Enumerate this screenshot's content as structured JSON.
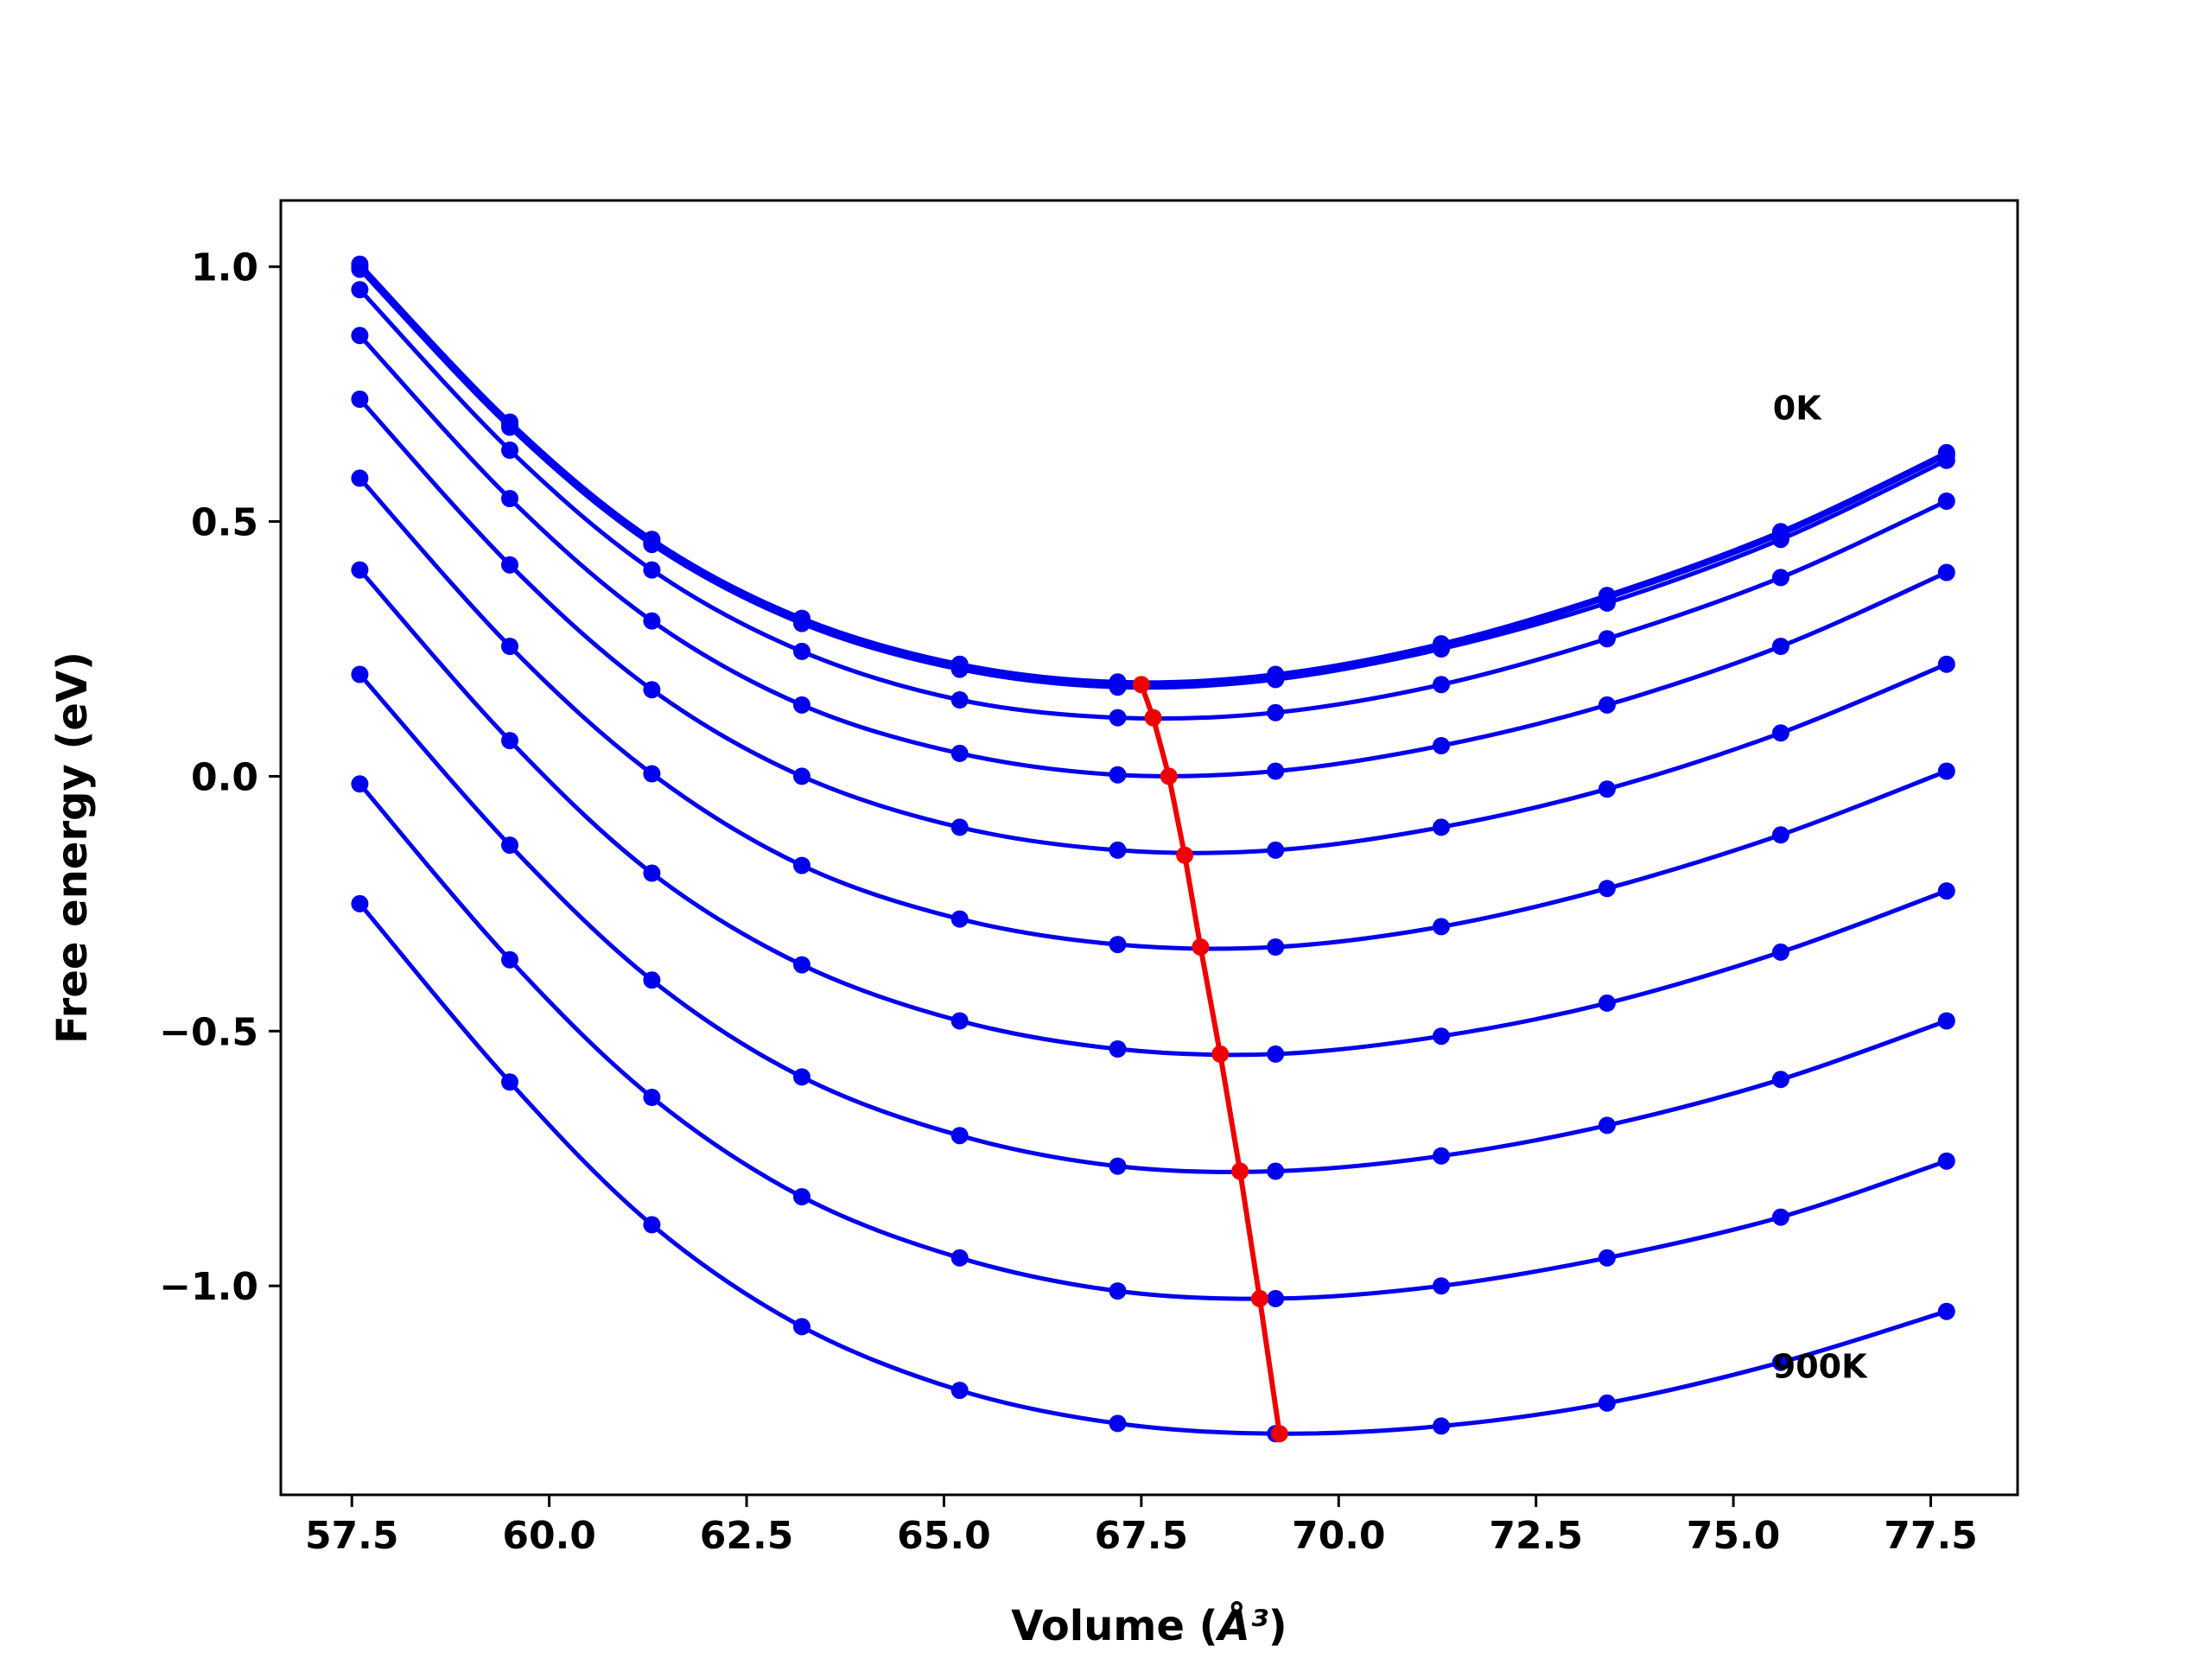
{
  "chart_data": {
    "type": "line",
    "xlabel": "Volume (",
    "xlabel_unit": "Å³",
    "xlabel_close": ")",
    "ylabel": "Free energy (eV)",
    "xlim": [
      56.6,
      78.6
    ],
    "ylim": [
      -1.41,
      1.13
    ],
    "x_ticks": [
      57.5,
      60.0,
      62.5,
      65.0,
      67.5,
      70.0,
      72.5,
      75.0,
      77.5
    ],
    "x_tick_labels": [
      "57.5",
      "60.0",
      "62.5",
      "65.0",
      "67.5",
      "70.0",
      "72.5",
      "75.0",
      "77.5"
    ],
    "y_ticks": [
      1.0,
      0.5,
      0.0,
      -0.5,
      -1.0
    ],
    "y_tick_labels": [
      "1.0",
      "0.5",
      "0.0",
      "−0.5",
      "−1.0"
    ],
    "grid": false,
    "x": [
      57.6,
      59.5,
      61.3,
      63.2,
      65.2,
      67.2,
      69.2,
      71.3,
      73.4,
      75.6,
      77.7
    ],
    "series": [
      {
        "color": "#0000ee",
        "values": [
          1.005,
          0.695,
          0.465,
          0.31,
          0.22,
          0.185,
          0.2,
          0.26,
          0.355,
          0.48,
          0.635
        ]
      },
      {
        "color": "#0000ee",
        "values": [
          1.0,
          0.69,
          0.46,
          0.305,
          0.215,
          0.18,
          0.195,
          0.255,
          0.35,
          0.475,
          0.63
        ]
      },
      {
        "color": "#0000ee",
        "values": [
          0.995,
          0.685,
          0.455,
          0.3,
          0.21,
          0.175,
          0.19,
          0.25,
          0.34,
          0.465,
          0.62
        ]
      },
      {
        "color": "#0000ee",
        "values": [
          0.955,
          0.64,
          0.405,
          0.245,
          0.15,
          0.115,
          0.125,
          0.18,
          0.27,
          0.39,
          0.54
        ]
      },
      {
        "color": "#0000ee",
        "values": [
          0.865,
          0.545,
          0.305,
          0.14,
          0.045,
          0.003,
          0.01,
          0.06,
          0.14,
          0.255,
          0.4
        ]
      },
      {
        "color": "#0000ee",
        "values": [
          0.74,
          0.415,
          0.17,
          0.0,
          -0.1,
          -0.145,
          -0.145,
          -0.1,
          -0.025,
          0.085,
          0.22
        ]
      },
      {
        "color": "#0000ee",
        "values": [
          0.585,
          0.255,
          0.005,
          -0.175,
          -0.28,
          -0.33,
          -0.335,
          -0.295,
          -0.22,
          -0.115,
          0.01
        ]
      },
      {
        "color": "#0000ee",
        "values": [
          0.405,
          0.07,
          -0.19,
          -0.37,
          -0.48,
          -0.535,
          -0.545,
          -0.51,
          -0.445,
          -0.345,
          -0.225
        ]
      },
      {
        "color": "#0000ee",
        "values": [
          0.2,
          -0.135,
          -0.4,
          -0.59,
          -0.705,
          -0.765,
          -0.775,
          -0.745,
          -0.685,
          -0.595,
          -0.48
        ]
      },
      {
        "color": "#0000ee",
        "values": [
          -0.015,
          -0.36,
          -0.63,
          -0.825,
          -0.945,
          -1.01,
          -1.025,
          -1.0,
          -0.945,
          -0.865,
          -0.755
        ]
      },
      {
        "color": "#0000ee",
        "values": [
          -0.25,
          -0.6,
          -0.88,
          -1.08,
          -1.205,
          -1.27,
          -1.29,
          -1.275,
          -1.23,
          -1.15,
          -1.05
        ]
      }
    ],
    "minima_line": {
      "color": "#ee0000",
      "x": [
        67.5,
        67.65,
        67.85,
        68.05,
        68.25,
        68.5,
        68.75,
        69.0,
        69.25
      ],
      "y": [
        0.18,
        0.115,
        0.0,
        -0.155,
        -0.335,
        -0.545,
        -0.775,
        -1.025,
        -1.29
      ]
    },
    "annotations": [
      {
        "text": "0K",
        "x": 75.5,
        "y": 0.7
      },
      {
        "text": "900K",
        "x": 75.5,
        "y": -1.18
      }
    ]
  }
}
